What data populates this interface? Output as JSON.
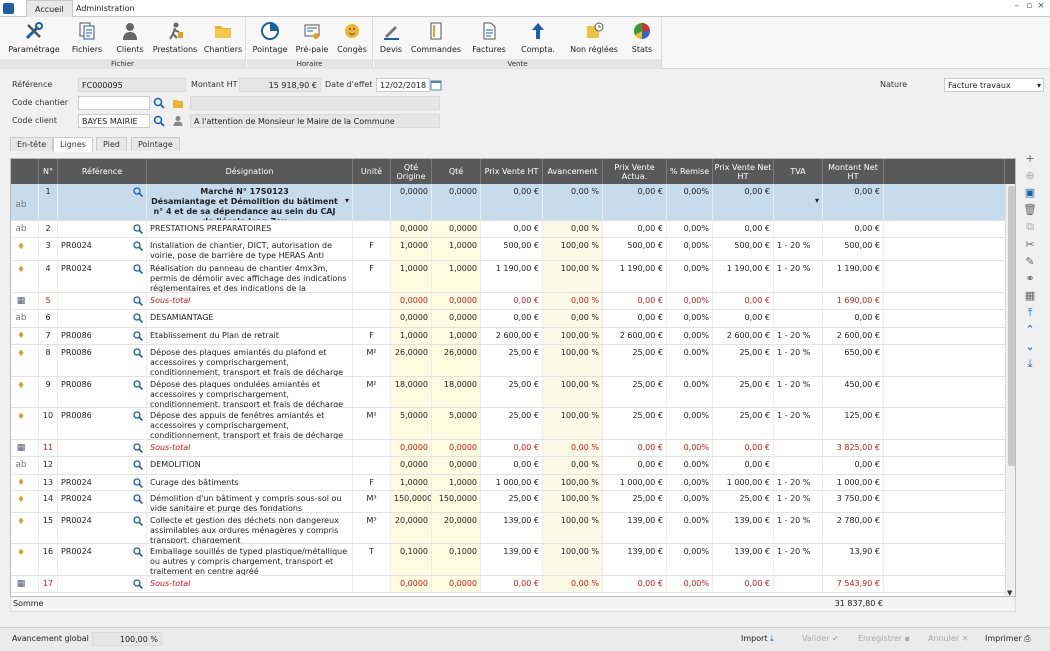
{
  "titlebar": {
    "tabs": [
      "Accueil",
      "Administration"
    ],
    "controls": [
      "–",
      "▫",
      "×"
    ]
  },
  "ribbon": {
    "groups": [
      {
        "label": "Fichier",
        "buttons": [
          {
            "label": "Paramétrage",
            "icon": "tools-icon"
          },
          {
            "label": "Fichiers",
            "icon": "files-icon"
          },
          {
            "label": "Clients",
            "icon": "clients-icon"
          },
          {
            "label": "Prestations",
            "icon": "prestations-icon"
          },
          {
            "label": "Chantiers",
            "icon": "folder-icon"
          }
        ]
      },
      {
        "label": "Horaire",
        "buttons": [
          {
            "label": "Pointage",
            "icon": "clock-chart-icon"
          },
          {
            "label": "Pré-paie",
            "icon": "payslip-icon"
          },
          {
            "label": "Congès",
            "icon": "holiday-icon"
          }
        ]
      },
      {
        "label": "Vente",
        "buttons": [
          {
            "label": "Devis",
            "icon": "pen-icon"
          },
          {
            "label": "Commandes",
            "icon": "order-icon"
          },
          {
            "label": "Factures",
            "icon": "invoice-icon"
          },
          {
            "label": "Compta.",
            "icon": "upload-arrow-icon"
          },
          {
            "label": "Non réglées",
            "icon": "unpaid-icon"
          },
          {
            "label": "Stats",
            "icon": "pie-chart-icon"
          }
        ]
      }
    ]
  },
  "header": {
    "reference_label": "Référence",
    "reference_value": "FC000095",
    "montant_label": "Montant HT",
    "montant_value": "15 918,90 €",
    "date_label": "Date d'effet",
    "date_value": "12/02/2018",
    "nature_label": "Nature",
    "nature_value": "Facture travaux",
    "chantier_label": "Code chantier",
    "chantier_value": "",
    "chantier_desc": "",
    "client_label": "Code client",
    "client_value": "BAYES MAIRIE",
    "client_desc": "A l'attention de Monsieur le Maire de la Commune"
  },
  "doc_tabs": [
    "En-tête",
    "Lignes",
    "Pied",
    "Pointage"
  ],
  "active_doc_tab": 1,
  "grid": {
    "columns": [
      "N°",
      "Référence",
      "Désignation",
      "Unité",
      "Qté Origine",
      "Qté",
      "Prix Vente HT",
      "Avancement",
      "Prix Vente Actua.",
      "% Remise",
      "Prix Vente Net HT",
      "TVA",
      "Montant Net HT"
    ],
    "rows": [
      {
        "type": "text",
        "no": "1",
        "ref": "",
        "des": "Marché N° 17S0123\nDésamiantage et Démolition du bâtiment n° 4 et de sa dépendance au sein du CAJ de l'école Jean Zay",
        "unit": "",
        "qo": "0,0000",
        "q": "0,0000",
        "pv": "0,00 €",
        "av": "0,00 %",
        "pva": "0,00 €",
        "rem": "0,00%",
        "pvn": "0,00 €",
        "tva": "",
        "mnt": "0,00 €",
        "h": 37,
        "bold": true,
        "selected": true
      },
      {
        "type": "text",
        "no": "2",
        "ref": "",
        "des": "PRESTATIONS PREPARATOIRES",
        "unit": "",
        "qo": "0,0000",
        "q": "0,0000",
        "pv": "0,00 €",
        "av": "0,00 %",
        "pva": "0,00 €",
        "rem": "0,00%",
        "pvn": "0,00 €",
        "tva": "",
        "mnt": "0,00 €",
        "h": 17
      },
      {
        "type": "item",
        "no": "3",
        "ref": "PR0024",
        "des": "Installation de chantier, DICT, autorisation de voirie, pose de barrière de type HERAS Anti Climb.",
        "unit": "F",
        "qo": "1,0000",
        "q": "1,0000",
        "pv": "500,00 €",
        "av": "100,00 %",
        "pva": "500,00 €",
        "rem": "0,00%",
        "pvn": "500,00 €",
        "tva": "1 - 20 %",
        "mnt": "500,00 €",
        "h": 23
      },
      {
        "type": "item",
        "no": "4",
        "ref": "PR0024",
        "des": "Réalisation du panneau de chantier 4mx3m, permis de démolir avec affichage des indications réglementaires et des indications de la collectivité",
        "unit": "F",
        "qo": "1,0000",
        "q": "1,0000",
        "pv": "1 190,00 €",
        "av": "100,00 %",
        "pva": "1 190,00 €",
        "rem": "0,00%",
        "pvn": "1 190,00 €",
        "tva": "1 - 20 %",
        "mnt": "1 190,00 €",
        "h": 32
      },
      {
        "type": "subtotal",
        "no": "5",
        "ref": "",
        "des": "Sous-total",
        "unit": "",
        "qo": "0,0000",
        "q": "0,0000",
        "pv": "0,00 €",
        "av": "0,00 %",
        "pva": "0,00 €",
        "rem": "0,00%",
        "pvn": "0,00 €",
        "tva": "",
        "mnt": "1 690,00 €",
        "h": 17
      },
      {
        "type": "text",
        "no": "6",
        "ref": "",
        "des": "DESAMIANTAGE",
        "unit": "",
        "qo": "0,0000",
        "q": "0,0000",
        "pv": "0,00 €",
        "av": "0,00 %",
        "pva": "0,00 €",
        "rem": "0,00%",
        "pvn": "0,00 €",
        "tva": "",
        "mnt": "0,00 €",
        "h": 18
      },
      {
        "type": "item",
        "no": "7",
        "ref": "PR0086",
        "des": "Etablissement du Plan de retrait",
        "unit": "F",
        "qo": "1,0000",
        "q": "1,0000",
        "pv": "2 600,00 €",
        "av": "100,00 %",
        "pva": "2 600,00 €",
        "rem": "0,00%",
        "pvn": "2 600,00 €",
        "tva": "1 - 20 %",
        "mnt": "2 600,00 €",
        "h": 17
      },
      {
        "type": "item",
        "no": "8",
        "ref": "PR0086",
        "des": "Dépose des plaques amiantés du plafond et accessoires y comprischargement, conditionnement, transport et frais de décharge",
        "unit": "M²",
        "qo": "26,0000",
        "q": "26,0000",
        "pv": "25,00 €",
        "av": "100,00 %",
        "pva": "25,00 €",
        "rem": "0,00%",
        "pvn": "25,00 €",
        "tva": "1 - 20 %",
        "mnt": "650,00 €",
        "h": 32
      },
      {
        "type": "item",
        "no": "9",
        "ref": "PR0086",
        "des": "Dépose des plaques ondulées amiantés et accessoires y comprischargement, conditionnement, transport et frais de décharge",
        "unit": "M²",
        "qo": "18,0000",
        "q": "18,0000",
        "pv": "25,00 €",
        "av": "100,00 %",
        "pva": "25,00 €",
        "rem": "0,00%",
        "pvn": "25,00 €",
        "tva": "1 - 20 %",
        "mnt": "450,00 €",
        "h": 31
      },
      {
        "type": "item",
        "no": "10",
        "ref": "PR0086",
        "des": "Dépose des appuis de fenêtres amiantés et accessoires y comprischargement, conditionnement, transport et frais de décharge",
        "unit": "M²",
        "qo": "5,0000",
        "q": "5,0000",
        "pv": "25,00 €",
        "av": "100,00 %",
        "pva": "25,00 €",
        "rem": "0,00%",
        "pvn": "25,00 €",
        "tva": "1 - 20 %",
        "mnt": "125,00 €",
        "h": 32
      },
      {
        "type": "subtotal",
        "no": "11",
        "ref": "",
        "des": "Sous-total",
        "unit": "",
        "qo": "0,0000",
        "q": "0,0000",
        "pv": "0,00 €",
        "av": "0,00 %",
        "pva": "0,00 €",
        "rem": "0,00%",
        "pvn": "0,00 €",
        "tva": "",
        "mnt": "3 825,00 €",
        "h": 17
      },
      {
        "type": "text",
        "no": "12",
        "ref": "",
        "des": "DEMOLITION",
        "unit": "",
        "qo": "0,0000",
        "q": "0,0000",
        "pv": "0,00 €",
        "av": "0,00 %",
        "pva": "0,00 €",
        "rem": "0,00%",
        "pvn": "0,00 €",
        "tva": "",
        "mnt": "0,00 €",
        "h": 18
      },
      {
        "type": "item",
        "no": "13",
        "ref": "PR0024",
        "des": "Curage des bâtiments",
        "unit": "F",
        "qo": "1,0000",
        "q": "1,0000",
        "pv": "1 000,00 €",
        "av": "100,00 %",
        "pva": "1 000,00 €",
        "rem": "0,00%",
        "pvn": "1 000,00 €",
        "tva": "1 - 20 %",
        "mnt": "1 000,00 €",
        "h": 16
      },
      {
        "type": "item",
        "no": "14",
        "ref": "PR0024",
        "des": "Démolition d'un bâtiment y compris sous-sol ou vide sanitaire et purge des fondations",
        "unit": "M³",
        "qo": "150,0000",
        "q": "150,0000",
        "pv": "25,00 €",
        "av": "100,00 %",
        "pva": "25,00 €",
        "rem": "0,00%",
        "pvn": "25,00 €",
        "tva": "1 - 20 %",
        "mnt": "3 750,00 €",
        "h": 22
      },
      {
        "type": "item",
        "no": "15",
        "ref": "PR0024",
        "des": "Collecte et gestion des déchets non dangereux assimilables aux ordures ménagères y compris transport, chargement",
        "unit": "M³",
        "qo": "20,0000",
        "q": "20,0000",
        "pv": "139,00 €",
        "av": "100,00 %",
        "pva": "139,00 €",
        "rem": "0,00%",
        "pvn": "139,00 €",
        "tva": "1 - 20 %",
        "mnt": "2 780,00 €",
        "h": 31
      },
      {
        "type": "item",
        "no": "16",
        "ref": "PR0024",
        "des": "Emballage souillés de typed plastique/métallique ou autres y compris chargement, transport et traitement en centre agréé",
        "unit": "T",
        "qo": "0,1000",
        "q": "0,1000",
        "pv": "139,00 €",
        "av": "100,00 %",
        "pva": "139,00 €",
        "rem": "0,00%",
        "pvn": "139,00 €",
        "tva": "1 - 20 %",
        "mnt": "13,90 €",
        "h": 32
      },
      {
        "type": "subtotal",
        "no": "17",
        "ref": "",
        "des": "Sous-total",
        "unit": "",
        "qo": "0,0000",
        "q": "0,0000",
        "pv": "0,00 €",
        "av": "0,00 %",
        "pva": "0,00 €",
        "rem": "0,00%",
        "pvn": "0,00 €",
        "tva": "",
        "mnt": "7 543,90 €",
        "h": 17
      }
    ]
  },
  "summary": {
    "label": "Somme",
    "total": "31 837,80 €"
  },
  "footer": {
    "avancement_label": "Avancement global",
    "avancement_value": "100,00 %",
    "import": "Import",
    "valider": "Valider",
    "enregistrer": "Enregistrer",
    "annuler": "Annuler",
    "imprimer": "Imprimer"
  },
  "colors": {
    "header_bg": "#595959",
    "selected_row": "#c6dcec",
    "subtotal_text": "#d01818",
    "qty_column_bg": "#fdfbe0"
  }
}
